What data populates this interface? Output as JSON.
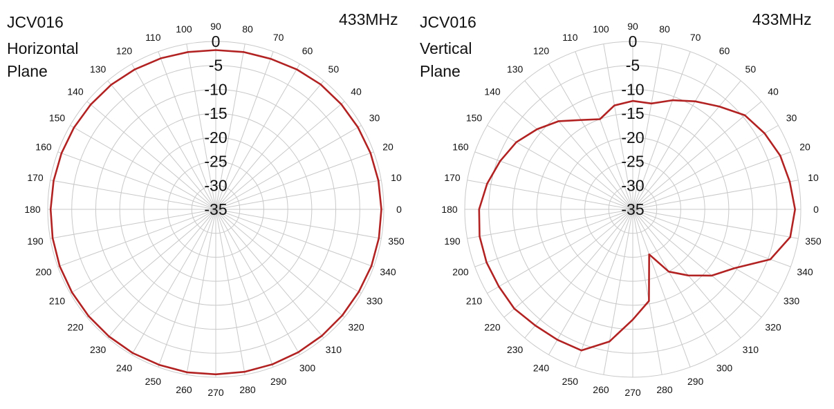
{
  "colors": {
    "grid": "#c8c8c8",
    "series": "#b22222",
    "text": "#111111"
  },
  "chart_data": [
    {
      "type": "polar-line",
      "title": "JCV016",
      "subtitle": "Horizontal Plane",
      "subtitle_lines": [
        "Horizontal",
        "Plane"
      ],
      "frequency": "433MHz",
      "radial_axis": {
        "min": -35,
        "max": 0,
        "ticks": [
          0,
          -5,
          -10,
          -15,
          -20,
          -25,
          -30,
          -35
        ]
      },
      "angular_axis": {
        "unit": "degrees",
        "step": 10,
        "direction": "counterclockwise",
        "zero": "right"
      },
      "grid": true,
      "series": [
        {
          "angles": [
            0,
            10,
            20,
            30,
            40,
            50,
            60,
            70,
            80,
            90,
            100,
            110,
            120,
            130,
            140,
            150,
            160,
            170,
            180,
            190,
            200,
            210,
            220,
            230,
            240,
            250,
            260,
            270,
            280,
            290,
            300,
            310,
            320,
            330,
            340,
            350
          ],
          "values": [
            -0.5,
            -0.6,
            -0.7,
            -0.8,
            -0.9,
            -1.0,
            -1.3,
            -1.6,
            -1.7,
            -1.8,
            -1.7,
            -1.5,
            -1.3,
            -1.1,
            -1.0,
            -0.9,
            -0.8,
            -0.7,
            -0.6,
            -0.5,
            -0.4,
            -0.4,
            -0.4,
            -0.4,
            -0.4,
            -0.5,
            -0.5,
            -0.6,
            -0.6,
            -0.6,
            -0.6,
            -0.6,
            -0.6,
            -0.6,
            -0.5,
            -0.5
          ]
        }
      ]
    },
    {
      "type": "polar-line",
      "title": "JCV016",
      "subtitle": "Vertical Plane",
      "subtitle_lines": [
        "Vertical",
        "Plane"
      ],
      "frequency": "433MHz",
      "radial_axis": {
        "min": -35,
        "max": 0,
        "ticks": [
          0,
          -5,
          -10,
          -15,
          -20,
          -25,
          -30,
          -35
        ]
      },
      "angular_axis": {
        "unit": "degrees",
        "step": 10,
        "direction": "counterclockwise",
        "zero": "right"
      },
      "grid": true,
      "series": [
        {
          "angles": [
            0,
            10,
            20,
            30,
            40,
            50,
            60,
            70,
            80,
            90,
            100,
            110,
            120,
            130,
            140,
            150,
            160,
            170,
            180,
            190,
            200,
            210,
            220,
            230,
            240,
            250,
            260,
            270,
            280,
            290,
            300,
            310,
            320,
            330,
            340,
            350
          ],
          "values": [
            -1.2,
            -1.8,
            -2.3,
            -3.3,
            -4.5,
            -7.0,
            -9.0,
            -10.8,
            -12.6,
            -12.4,
            -13.0,
            -15.0,
            -13.5,
            -11.0,
            -9.0,
            -7.0,
            -5.6,
            -4.2,
            -3.0,
            -2.6,
            -2.6,
            -2.8,
            -2.8,
            -3.4,
            -3.6,
            -3.7,
            -7.0,
            -12.0,
            -15.6,
            -25.0,
            -20.0,
            -17.0,
            -13.5,
            -10.5,
            -4.5,
            -1.7
          ]
        }
      ]
    }
  ]
}
